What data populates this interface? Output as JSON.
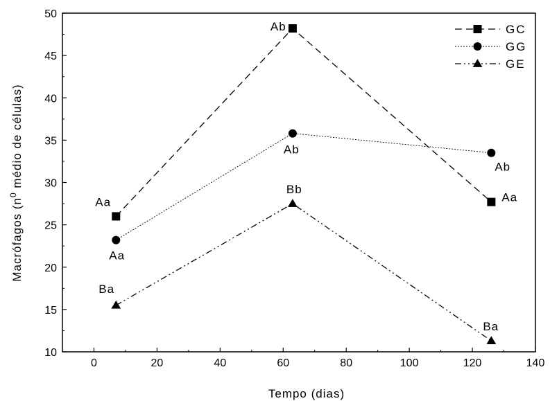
{
  "chart_data": {
    "type": "line",
    "xlabel": "Tempo (dias)",
    "ylabel_main": "Macrófagos (n",
    "ylabel_sup": "0",
    "ylabel_rest": " médio de células)",
    "xlim": [
      -10,
      140
    ],
    "ylim": [
      10,
      50
    ],
    "xticks": [
      0,
      20,
      40,
      60,
      80,
      100,
      120,
      140
    ],
    "yticks": [
      10,
      15,
      20,
      25,
      30,
      35,
      40,
      45,
      50
    ],
    "grid": false,
    "legend_position": "top-right",
    "series": [
      {
        "name": "GC",
        "marker": "square",
        "line_style": "dashed",
        "x": [
          7,
          63,
          126
        ],
        "y": [
          26.0,
          48.2,
          27.7
        ],
        "labels": [
          "Aa",
          "Ab",
          "Aa"
        ]
      },
      {
        "name": "GG",
        "marker": "circle",
        "line_style": "dotted",
        "x": [
          7,
          63,
          126
        ],
        "y": [
          23.2,
          35.8,
          33.5
        ],
        "labels": [
          "Aa",
          "Ab",
          "Ab"
        ]
      },
      {
        "name": "GE",
        "marker": "triangle",
        "line_style": "dash-dot-dot",
        "x": [
          7,
          63,
          126
        ],
        "y": [
          15.5,
          27.5,
          11.3
        ],
        "labels": [
          "Ba",
          "Bb",
          "Ba"
        ]
      }
    ]
  }
}
